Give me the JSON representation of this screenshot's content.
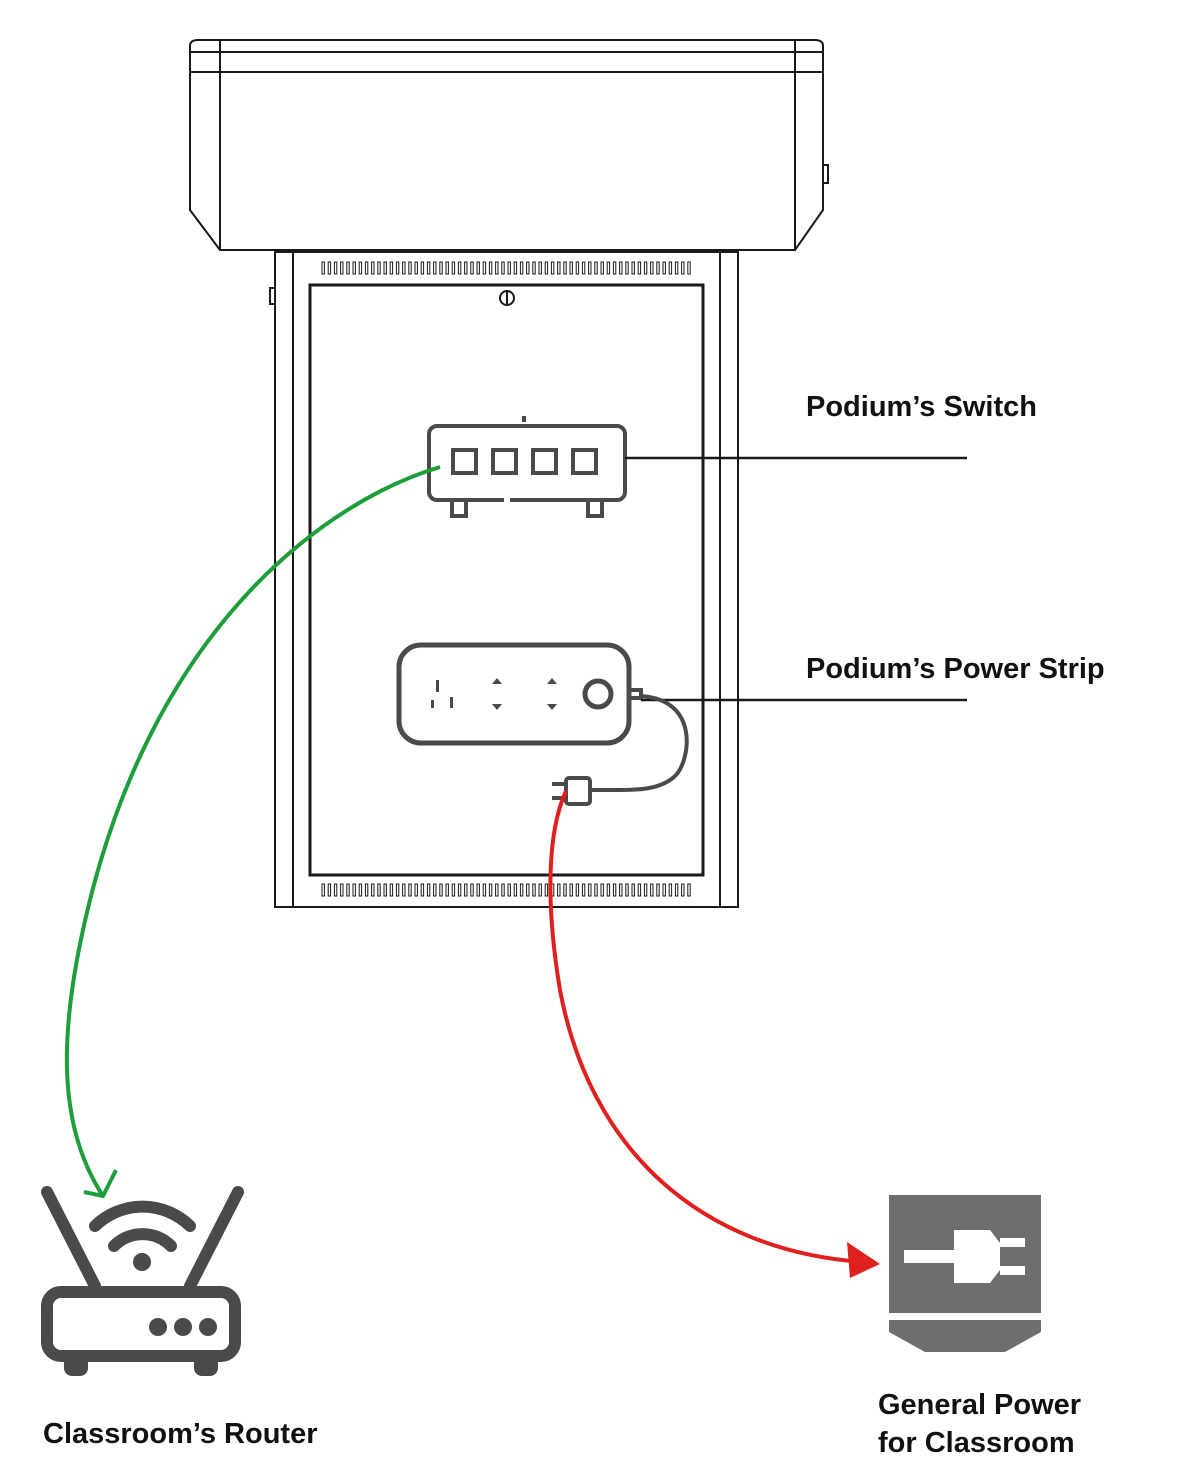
{
  "labels": {
    "switch": "Podium’s Switch",
    "power_strip": "Podium’s Power Strip",
    "router": "Classroom’s Router",
    "general_power_line1": "General Power",
    "general_power_line2": "for Classroom"
  },
  "colors": {
    "network_cable": "#1e9e3a",
    "power_cable": "#e0201e",
    "outline": "#1a1a1a",
    "icon_gray": "#4a4a4a",
    "outlet_gray": "#6e6e6e"
  },
  "icons": {
    "podium": "podium-icon",
    "switch": "network-switch-icon",
    "power_strip": "power-strip-icon",
    "router": "wifi-router-icon",
    "wall_outlet": "wall-power-plug-icon"
  }
}
